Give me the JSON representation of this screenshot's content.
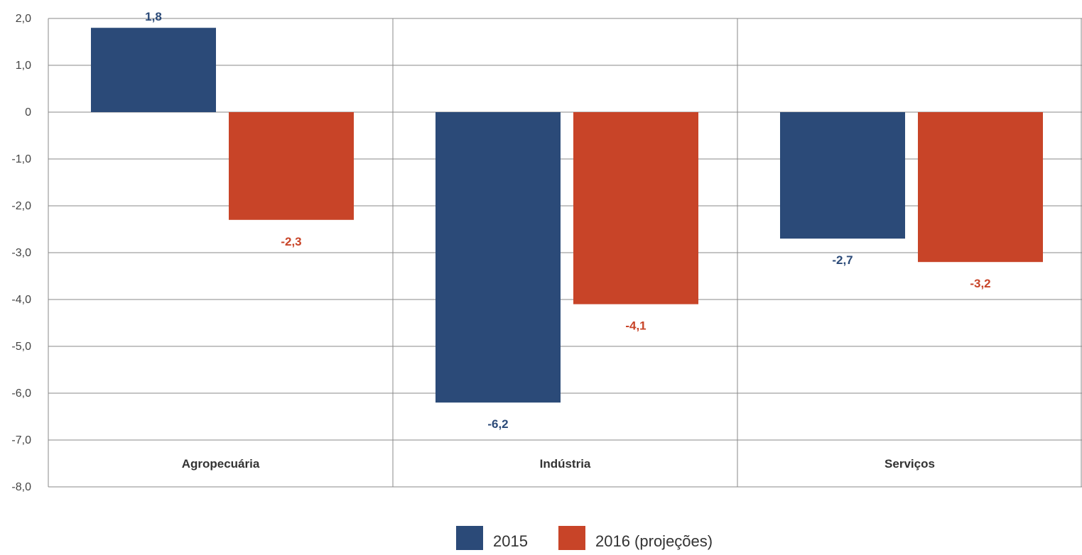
{
  "chart_data": {
    "type": "bar",
    "categories": [
      "Agropecuária",
      "Indústria",
      "Serviços"
    ],
    "series": [
      {
        "name": "2015",
        "color": "#2b4a78",
        "values": [
          1.8,
          -6.2,
          -2.7
        ],
        "labels": [
          "1,8",
          "-6,2",
          "-2,7"
        ]
      },
      {
        "name": "2016 (projeções)",
        "color": "#c84428",
        "values": [
          -2.3,
          -4.1,
          -3.2
        ],
        "labels": [
          "-2,3",
          "-4,1",
          "-3,2"
        ]
      }
    ],
    "ylim": [
      -8,
      2
    ],
    "yticks": [
      2,
      1,
      0,
      -1,
      -2,
      -3,
      -4,
      -5,
      -6,
      -7,
      -8
    ],
    "ytick_labels": [
      "2,0",
      "1,0",
      "0",
      "-1,0",
      "-2,0",
      "-3,0",
      "-4,0",
      "-5,0",
      "-6,0",
      "-7,0",
      "-8,0"
    ],
    "grid": true,
    "legend_position": "bottom-center",
    "title": "",
    "xlabel": "",
    "ylabel": ""
  }
}
